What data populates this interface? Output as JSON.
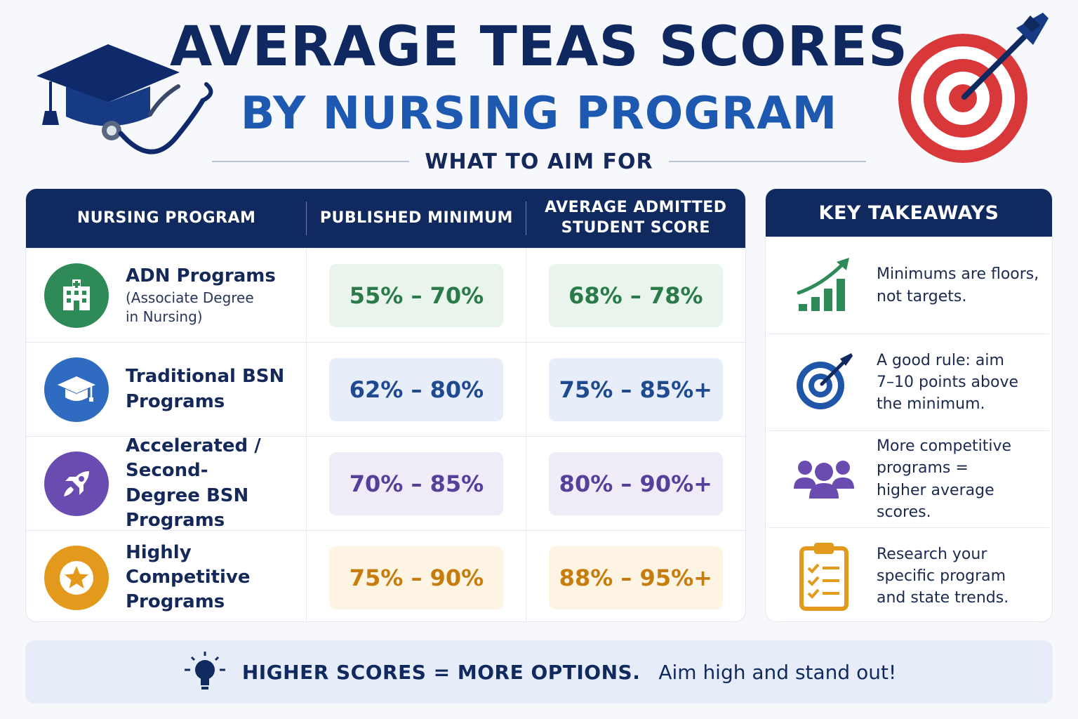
{
  "header": {
    "title_line1": "AVERAGE TEAS SCORES",
    "title_line2": "BY NURSING PROGRAM",
    "subtitle": "WHAT TO AIM FOR"
  },
  "table": {
    "columns": [
      "NURSING PROGRAM",
      "PUBLISHED MINIMUM",
      "AVERAGE ADMITTED",
      "STUDENT SCORE"
    ],
    "rows": [
      {
        "name_line1": "ADN Programs",
        "name_line2": "",
        "detail_line1": "(Associate Degree",
        "detail_line2": "in Nursing)",
        "icon": "hospital-icon",
        "color": "#2e8b57",
        "minimum": "55% – 70%",
        "average": "68% – 78%",
        "pill_bg": "#e9f5ec",
        "text_color": "#2a7a4a"
      },
      {
        "name_line1": "Traditional BSN",
        "name_line2": "Programs",
        "detail_line1": "",
        "detail_line2": "",
        "icon": "graduation-cap-icon",
        "color": "#2f6bc0",
        "minimum": "62% – 80%",
        "average": "75% – 85%+",
        "pill_bg": "#e7eefa",
        "text_color": "#1f4a90"
      },
      {
        "name_line1": "Accelerated / Second-",
        "name_line2": "Degree BSN Programs",
        "detail_line1": "",
        "detail_line2": "",
        "icon": "rocket-icon",
        "color": "#6a4bb0",
        "minimum": "70% – 85%",
        "average": "80% – 90%+",
        "pill_bg": "#efecf8",
        "text_color": "#57409a"
      },
      {
        "name_line1": "Highly Competitive",
        "name_line2": "Programs",
        "detail_line1": "",
        "detail_line2": "",
        "icon": "star-icon",
        "color": "#e39a1c",
        "minimum": "75% – 90%",
        "average": "88% – 95%+",
        "pill_bg": "#fdf4e3",
        "text_color": "#c77d0e"
      }
    ]
  },
  "takeaways": {
    "title": "KEY TAKEAWAYS",
    "items": [
      {
        "icon": "growth-chart-icon",
        "line1": "Minimums are floors,",
        "line2": "not targets.",
        "line3": ""
      },
      {
        "icon": "target-icon",
        "line1": "A good rule: aim",
        "line2": "7–10 points above",
        "line3": "the minimum."
      },
      {
        "icon": "people-icon",
        "line1": "More competitive",
        "line2": "programs =",
        "line3": "higher average scores."
      },
      {
        "icon": "clipboard-icon",
        "line1": "Research your",
        "line2": "specific program",
        "line3": "and state trends."
      }
    ]
  },
  "banner": {
    "strong": "HIGHER SCORES =  MORE OPTIONS.",
    "light": "Aim high and stand out!",
    "icon": "lightbulb-icon"
  }
}
